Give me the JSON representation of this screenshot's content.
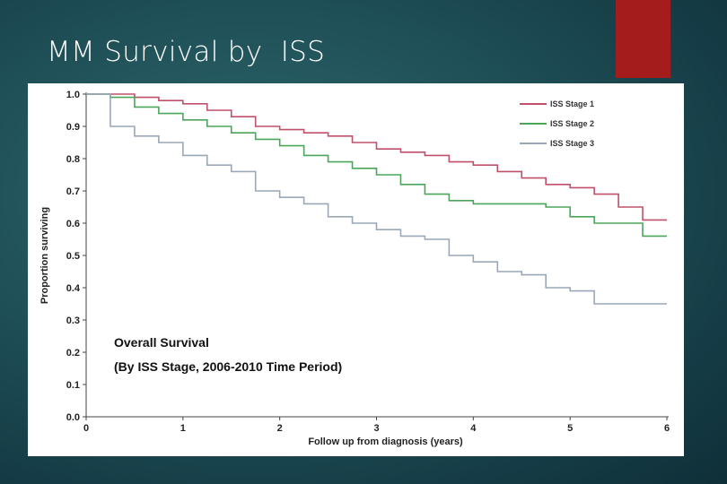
{
  "slide": {
    "title": "MM Survival by  ISS",
    "accent_color": "#a51c1c"
  },
  "chart_data": {
    "type": "line",
    "title": "",
    "xlabel": "Follow up from diagnosis (years)",
    "ylabel": "Proportion surviving",
    "xlim": [
      0,
      6
    ],
    "ylim": [
      0.0,
      1.0
    ],
    "xticks": [
      0,
      1,
      2,
      3,
      4,
      5,
      6
    ],
    "yticks": [
      0.0,
      0.1,
      0.2,
      0.3,
      0.4,
      0.5,
      0.6,
      0.7,
      0.8,
      0.9,
      1.0
    ],
    "ytick_labels": [
      "0.0",
      "0.1",
      "0.2",
      "0.3",
      "0.4",
      "0.5",
      "0.6",
      "0.7",
      "0.8",
      "0.9",
      "1.0"
    ],
    "grid": false,
    "legend_position": "top-right",
    "annotation": [
      "Overall Survival",
      "(By ISS Stage, 2006-2010 Time Period)"
    ],
    "series": [
      {
        "name": "ISS Stage 1",
        "color": "#c0506a",
        "x": [
          0,
          0.25,
          0.5,
          0.75,
          1.0,
          1.25,
          1.5,
          1.75,
          2.0,
          2.25,
          2.5,
          2.75,
          3.0,
          3.25,
          3.5,
          3.75,
          4.0,
          4.25,
          4.5,
          4.75,
          5.0,
          5.25,
          5.5,
          5.75,
          6.0
        ],
        "y": [
          1.0,
          1.0,
          0.99,
          0.98,
          0.97,
          0.95,
          0.93,
          0.9,
          0.89,
          0.88,
          0.87,
          0.85,
          0.83,
          0.82,
          0.81,
          0.79,
          0.78,
          0.76,
          0.74,
          0.72,
          0.71,
          0.69,
          0.65,
          0.61,
          0.61
        ]
      },
      {
        "name": "ISS Stage 2",
        "color": "#4ca55a",
        "x": [
          0,
          0.25,
          0.5,
          0.75,
          1.0,
          1.25,
          1.5,
          1.75,
          2.0,
          2.25,
          2.5,
          2.75,
          3.0,
          3.25,
          3.5,
          3.75,
          4.0,
          4.25,
          4.5,
          4.75,
          5.0,
          5.25,
          5.5,
          5.75,
          6.0
        ],
        "y": [
          1.0,
          0.99,
          0.96,
          0.94,
          0.92,
          0.9,
          0.88,
          0.86,
          0.84,
          0.81,
          0.79,
          0.77,
          0.75,
          0.72,
          0.69,
          0.67,
          0.66,
          0.66,
          0.66,
          0.65,
          0.62,
          0.6,
          0.6,
          0.56,
          0.56
        ]
      },
      {
        "name": "ISS Stage 3",
        "color": "#9aa7b8",
        "x": [
          0,
          0.25,
          0.5,
          0.75,
          1.0,
          1.25,
          1.5,
          1.75,
          2.0,
          2.25,
          2.5,
          2.75,
          3.0,
          3.25,
          3.5,
          3.75,
          4.0,
          4.25,
          4.5,
          4.75,
          5.0,
          5.25,
          5.5,
          5.75,
          6.0
        ],
        "y": [
          1.0,
          0.9,
          0.87,
          0.85,
          0.81,
          0.78,
          0.76,
          0.7,
          0.68,
          0.66,
          0.62,
          0.6,
          0.58,
          0.56,
          0.55,
          0.5,
          0.48,
          0.45,
          0.44,
          0.4,
          0.39,
          0.35,
          0.35,
          0.35,
          0.35
        ]
      }
    ]
  }
}
